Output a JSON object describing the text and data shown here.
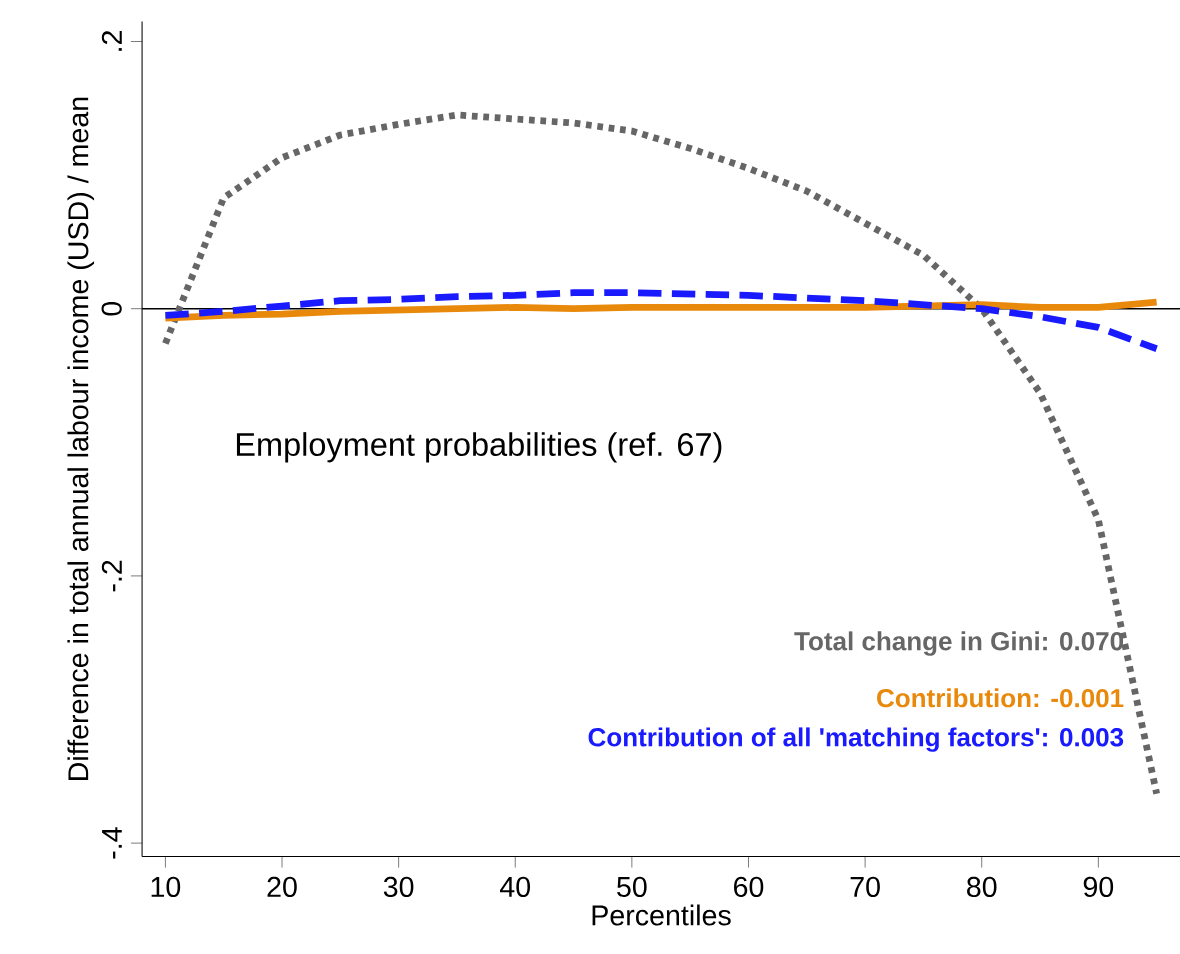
{
  "chart_data": {
    "type": "line",
    "xlabel": "Percentiles",
    "ylabel": "Difference in total annual labour income (USD) / mean",
    "x": [
      10,
      15,
      20,
      25,
      30,
      35,
      40,
      45,
      50,
      55,
      60,
      65,
      70,
      75,
      80,
      85,
      90,
      95
    ],
    "series": [
      {
        "color": "#666666",
        "line_style": "dotted",
        "values": [
          -0.026,
          0.083,
          0.113,
          0.13,
          0.138,
          0.145,
          0.142,
          0.139,
          0.133,
          0.12,
          0.105,
          0.088,
          0.064,
          0.04,
          0.0,
          -0.063,
          -0.158,
          -0.363
        ]
      },
      {
        "color": "#e8890c",
        "line_style": "solid",
        "values": [
          -0.007,
          -0.005,
          -0.004,
          -0.002,
          -0.001,
          0.0,
          0.001,
          0.0,
          0.001,
          0.001,
          0.001,
          0.001,
          0.001,
          0.002,
          0.003,
          0.001,
          0.001,
          0.005
        ]
      },
      {
        "color": "#1a1aff",
        "line_style": "dashed",
        "values": [
          -0.005,
          -0.002,
          0.002,
          0.006,
          0.007,
          0.009,
          0.01,
          0.012,
          0.012,
          0.011,
          0.01,
          0.008,
          0.006,
          0.003,
          0.0,
          -0.006,
          -0.014,
          -0.03
        ]
      }
    ],
    "xlim": [
      8,
      97
    ],
    "ylim": [
      -0.41,
      0.215
    ],
    "xticks": [
      10,
      20,
      30,
      40,
      50,
      60,
      70,
      80,
      90
    ],
    "yticks": [
      {
        "value": -0.4,
        "label": "-.4"
      },
      {
        "value": -0.2,
        "label": "-.2"
      },
      0,
      {
        "value": 0.2,
        "label": ".2"
      }
    ],
    "ref_lines": [
      {
        "axis": "y",
        "value": 0,
        "color": "#000000"
      }
    ],
    "annotations": [
      "Employment probabilities (ref. 67)",
      "Total change in Gini:  0.070",
      "Contribution:  -0.001",
      "Contribution of all 'matching factors':  0.003"
    ],
    "grid": false,
    "marker": "none"
  }
}
